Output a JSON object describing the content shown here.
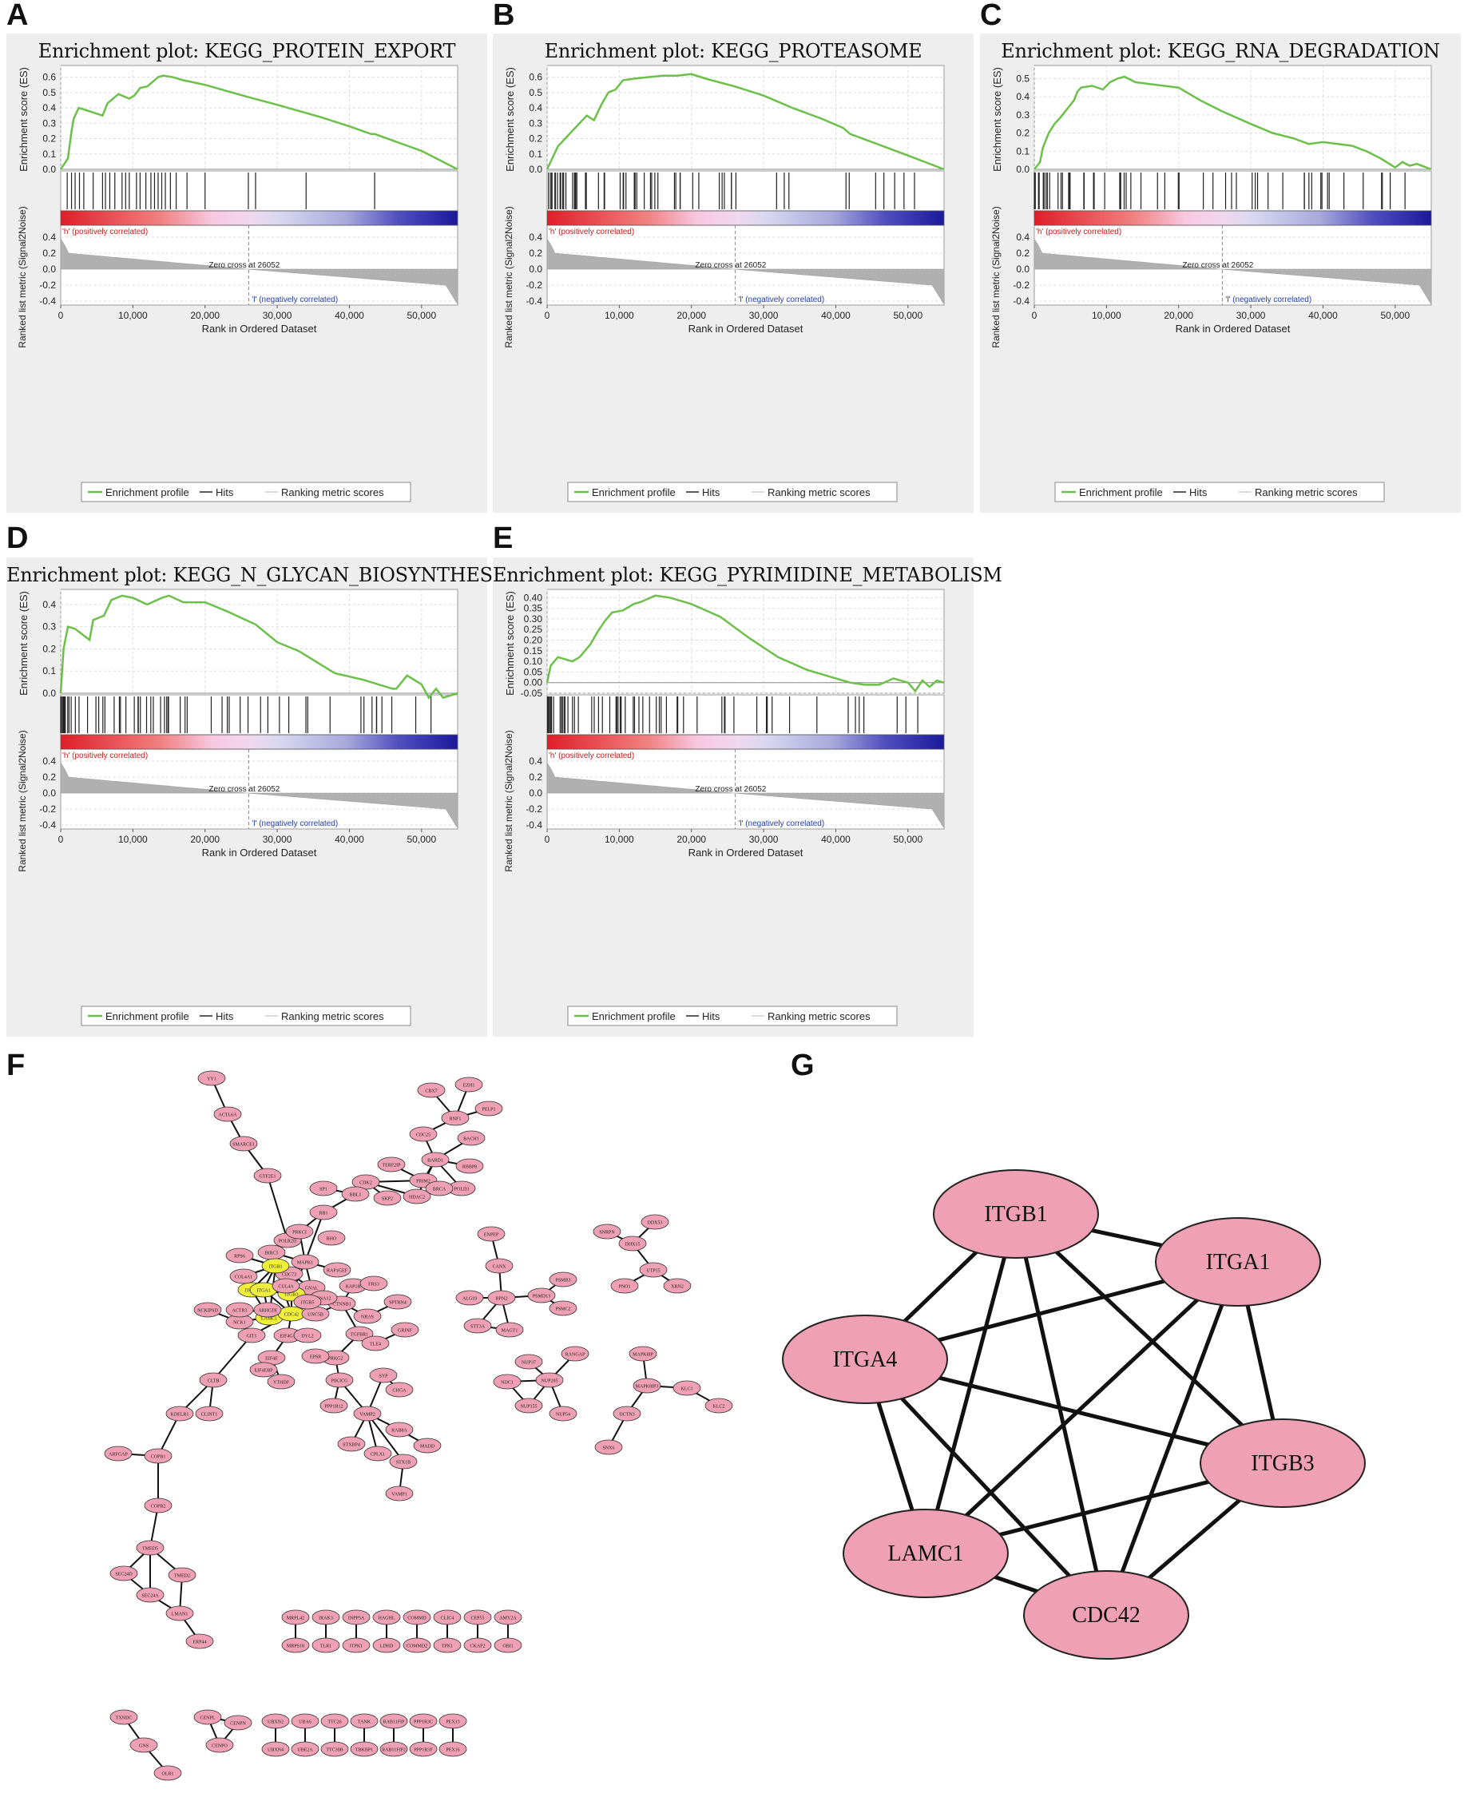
{
  "panel_labels": {
    "A": "A",
    "B": "B",
    "C": "C",
    "D": "D",
    "E": "E",
    "F": "F",
    "G": "G"
  },
  "gsea_common": {
    "es_ylabel": "Enrichment score (ES)",
    "metric_ylabel": "Ranked list metric (Signal2Noise)",
    "xlabel": "Rank in Ordered Dataset",
    "pos_label": "'h' (positively correlated)",
    "neg_label": "'l' (negatively correlated)",
    "zero_cross": "Zero cross at 26052",
    "metric_ticks": [
      "0.4",
      "0.2",
      "0.0",
      "-0.2",
      "-0.4"
    ],
    "x_ticks": [
      "0",
      "10,000",
      "20,000",
      "30,000",
      "40,000",
      "50,000"
    ],
    "legend": [
      "Enrichment profile",
      "Hits",
      "Ranking metric scores"
    ],
    "colors": {
      "profile": "#6cc04a",
      "hits": "#222222",
      "metric": "#b0b0b0",
      "pos": "#e0202a",
      "neg": "#2a2aa8",
      "pos_text": "#d01818",
      "neg_text": "#2040b0"
    }
  },
  "chart_data": [
    {
      "id": "A",
      "type": "line",
      "title": "Enrichment plot: KEGG_PROTEIN_EXPORT",
      "xlabel": "Rank in Ordered Dataset",
      "ylabel": "Enrichment score (ES)",
      "xlim": [
        0,
        55000
      ],
      "ylim": [
        0,
        0.65
      ],
      "es_ticks": [
        "0.0",
        "0.1",
        "0.2",
        "0.3",
        "0.4",
        "0.5",
        "0.6"
      ],
      "x": [
        0,
        1000,
        1500,
        1800,
        2500,
        3200,
        5800,
        6500,
        8000,
        9500,
        10200,
        11000,
        12000,
        13500,
        14200,
        15500,
        17000,
        18000,
        20000,
        23000,
        26000,
        30000,
        33000,
        36000,
        40000,
        43000,
        43500,
        50000,
        55000
      ],
      "es": [
        0,
        0.07,
        0.25,
        0.33,
        0.4,
        0.39,
        0.35,
        0.43,
        0.49,
        0.46,
        0.48,
        0.53,
        0.54,
        0.6,
        0.61,
        0.6,
        0.58,
        0.57,
        0.55,
        0.51,
        0.47,
        0.42,
        0.38,
        0.34,
        0.28,
        0.23,
        0.23,
        0.12,
        0
      ],
      "hits": [
        900,
        1500,
        2000,
        2600,
        3200,
        4500,
        5800,
        6200,
        6800,
        7500,
        8500,
        9000,
        9500,
        10500,
        11000,
        11800,
        12500,
        13000,
        13500,
        14000,
        14500,
        15200,
        16000,
        17500,
        20000,
        26000,
        27000,
        34000,
        43500
      ]
    },
    {
      "id": "B",
      "type": "line",
      "title": "Enrichment plot: KEGG_PROTEASOME",
      "xlabel": "Rank in Ordered Dataset",
      "ylabel": "Enrichment score (ES)",
      "xlim": [
        0,
        55000
      ],
      "ylim": [
        0,
        0.65
      ],
      "es_ticks": [
        "0.0",
        "0.1",
        "0.2",
        "0.3",
        "0.4",
        "0.5",
        "0.6"
      ],
      "x": [
        0,
        800,
        1500,
        2500,
        3500,
        4500,
        5500,
        6500,
        7500,
        8500,
        9500,
        10500,
        12000,
        14000,
        16000,
        18000,
        20000,
        22000,
        26000,
        30000,
        34000,
        38000,
        41000,
        42000,
        46000,
        50000,
        55000
      ],
      "es": [
        0,
        0.08,
        0.15,
        0.2,
        0.25,
        0.3,
        0.35,
        0.32,
        0.42,
        0.5,
        0.52,
        0.58,
        0.59,
        0.6,
        0.61,
        0.61,
        0.62,
        0.59,
        0.54,
        0.48,
        0.4,
        0.33,
        0.27,
        0.23,
        0.16,
        0.09,
        0
      ]
    },
    {
      "id": "C",
      "type": "line",
      "title": "Enrichment plot: KEGG_RNA_DEGRADATION",
      "xlabel": "Rank in Ordered Dataset",
      "ylabel": "Enrichment score (ES)",
      "xlim": [
        0,
        55000
      ],
      "ylim": [
        0,
        0.55
      ],
      "es_ticks": [
        "0.0",
        "0.1",
        "0.2",
        "0.3",
        "0.4",
        "0.5"
      ],
      "x": [
        0,
        800,
        1200,
        2000,
        2800,
        3500,
        4500,
        5500,
        6000,
        6500,
        8000,
        9500,
        10500,
        11500,
        12500,
        14000,
        16000,
        18000,
        20000,
        23000,
        26000,
        30000,
        33000,
        36000,
        38000,
        40000,
        44000,
        46000,
        48000,
        50000,
        51000,
        52000,
        53000,
        55000
      ],
      "es": [
        0,
        0.04,
        0.12,
        0.2,
        0.25,
        0.28,
        0.33,
        0.38,
        0.43,
        0.45,
        0.46,
        0.44,
        0.48,
        0.5,
        0.51,
        0.48,
        0.47,
        0.46,
        0.45,
        0.38,
        0.32,
        0.25,
        0.2,
        0.17,
        0.14,
        0.15,
        0.13,
        0.1,
        0.06,
        0.01,
        0.04,
        0.02,
        0.03,
        0
      ]
    },
    {
      "id": "D",
      "type": "line",
      "title": "Enrichment plot: KEGG_N_GLYCAN_BIOSYNTHESIS",
      "xlabel": "Rank in Ordered Dataset",
      "ylabel": "Enrichment score (ES)",
      "xlim": [
        0,
        55000
      ],
      "ylim": [
        0,
        0.45
      ],
      "es_ticks": [
        "0.0",
        "0.1",
        "0.2",
        "0.3",
        "0.4"
      ],
      "x": [
        0,
        400,
        1000,
        2000,
        4000,
        4500,
        6000,
        7000,
        8500,
        10000,
        12000,
        14000,
        15000,
        17000,
        20000,
        23000,
        27000,
        30000,
        33000,
        36000,
        38000,
        42000,
        44000,
        46000,
        46500,
        48000,
        50000,
        51000,
        52000,
        53000,
        55000
      ],
      "es": [
        0,
        0.2,
        0.3,
        0.29,
        0.24,
        0.33,
        0.35,
        0.42,
        0.44,
        0.43,
        0.4,
        0.43,
        0.44,
        0.41,
        0.41,
        0.37,
        0.31,
        0.23,
        0.19,
        0.13,
        0.09,
        0.06,
        0.04,
        0.02,
        0.02,
        0.08,
        0.04,
        -0.02,
        0.02,
        -0.02,
        0
      ]
    },
    {
      "id": "E",
      "type": "line",
      "title": "Enrichment plot: KEGG_PYRIMIDINE_METABOLISM",
      "xlabel": "Rank in Ordered Dataset",
      "ylabel": "Enrichment score (ES)",
      "xlim": [
        0,
        55000
      ],
      "ylim": [
        -0.05,
        0.42
      ],
      "es_ticks": [
        "-0.05",
        "0.00",
        "0.05",
        "0.10",
        "0.15",
        "0.20",
        "0.25",
        "0.30",
        "0.35",
        "0.40"
      ],
      "x": [
        0,
        500,
        1500,
        2500,
        3500,
        4500,
        6000,
        7000,
        8000,
        9000,
        10500,
        12000,
        13000,
        15000,
        17000,
        20000,
        24000,
        28000,
        32000,
        36000,
        38000,
        40000,
        42000,
        44000,
        46000,
        48000,
        50000,
        51000,
        52000,
        53000,
        54000,
        55000
      ],
      "es": [
        0,
        0.08,
        0.12,
        0.11,
        0.1,
        0.12,
        0.18,
        0.24,
        0.29,
        0.33,
        0.34,
        0.37,
        0.38,
        0.41,
        0.4,
        0.37,
        0.31,
        0.21,
        0.12,
        0.06,
        0.04,
        0.02,
        0.0,
        -0.01,
        -0.01,
        0.02,
        0.0,
        -0.04,
        0.01,
        -0.02,
        0.01,
        0
      ]
    }
  ],
  "network_F": {
    "nodes": [
      "YY1",
      "ACTL6A",
      "SMARCE1",
      "GTF2E1",
      "POLR2D",
      "CBX7",
      "EZH1",
      "PELP1",
      "RNF1",
      "CDC25",
      "BACH1",
      "BARD1",
      "RBBP8",
      "TERF2IP",
      "PRIM2",
      "POLD3",
      "HDAC2",
      "BRCA",
      "CDK2",
      "SKP2",
      "BBL1",
      "SP1",
      "RB1",
      "PRKCI",
      "RHO",
      "BIRC5",
      "MAPK1",
      "CDC73",
      "GNAL",
      "RAP1GEF",
      "ITGA4",
      "ITGB1",
      "ITGA1",
      "ITGB3",
      "LAMC1",
      "CDC42",
      "CUL4A",
      "COL4A1",
      "RPS6",
      "NCK1",
      "ACTR3",
      "NCKIPSD",
      "ARHGDI",
      "GIT1",
      "EIF4G1",
      "EIF4E",
      "DYL2",
      "UNC5B",
      "CTNNB1",
      "RAP1B",
      "PRKG2",
      "PIK3CG",
      "EPSR",
      "YTHDF",
      "EIF4EBP",
      "GNA12",
      "ITGB5",
      "TGFBR1",
      "NRAS",
      "FRS3",
      "SPTBN4",
      "TLE4",
      "GRINF",
      "CHGA",
      "SYP",
      "VAMP2",
      "RAB8A",
      "MADD",
      "PPP1R12",
      "STXBP4",
      "CPLX1",
      "STX1B",
      "VAMP1",
      "CLTB",
      "KDELR1",
      "CLINT1",
      "ARFGAP",
      "COPB1",
      "COPB2",
      "TMED5",
      "SEC24D",
      "SEC24A",
      "TMED2",
      "LMAN1",
      "ERP44",
      "ENPEP",
      "CANX",
      "RPN2",
      "ALG10",
      "STT3A",
      "MAGT1",
      "PSMD13",
      "PSMB3",
      "PSMC2",
      "SNRPN",
      "DDX53",
      "DHX15",
      "UTP15",
      "PNO1",
      "XRN2",
      "RANGAP",
      "NUP37",
      "NDC1",
      "NUP205",
      "NUP155",
      "NUP54",
      "MAPK8IP",
      "MAPK8IP3",
      "KLC1",
      "KLC2",
      "DCTN3",
      "SNX6",
      "MRPL42",
      "IRAK3",
      "INPP5A",
      "HAGHL",
      "COMMD",
      "CLIC4",
      "CEP55",
      "AMY2A",
      "MRPS18",
      "TLR1",
      "ITPK1",
      "LDHD",
      "COMMD2",
      "TPK1",
      "CKAP2",
      "OBI1",
      "TXNDC",
      "GNS",
      "OLR1",
      "CENPL",
      "CENPN",
      "CENPO",
      "UBXN2",
      "UBA6",
      "TTC26",
      "TANK",
      "RAB11FIP",
      "PPP1R3C",
      "PEX13",
      "UBXN4",
      "UBE2A",
      "TTC30B",
      "TBKBP1",
      "RAB11FIP2",
      "PPP1R3F",
      "PEX16"
    ],
    "highlight": [
      "ITGA4",
      "ITGB1",
      "ITGA1",
      "ITGB3",
      "LAMC1",
      "CDC42"
    ],
    "colors": {
      "node": "#f0a0b4",
      "highlight": "#f0ef3a",
      "edge": "#111111"
    }
  },
  "network_G": {
    "nodes": [
      "ITGB1",
      "ITGA1",
      "ITGA4",
      "ITGB3",
      "LAMC1",
      "CDC42"
    ],
    "edges": [
      [
        0,
        1
      ],
      [
        0,
        2
      ],
      [
        0,
        3
      ],
      [
        0,
        4
      ],
      [
        0,
        5
      ],
      [
        1,
        2
      ],
      [
        1,
        3
      ],
      [
        1,
        4
      ],
      [
        1,
        5
      ],
      [
        2,
        3
      ],
      [
        2,
        4
      ],
      [
        2,
        5
      ],
      [
        3,
        4
      ],
      [
        3,
        5
      ],
      [
        4,
        5
      ]
    ],
    "colors": {
      "node": "#f0a0b4",
      "edge": "#111111"
    }
  }
}
